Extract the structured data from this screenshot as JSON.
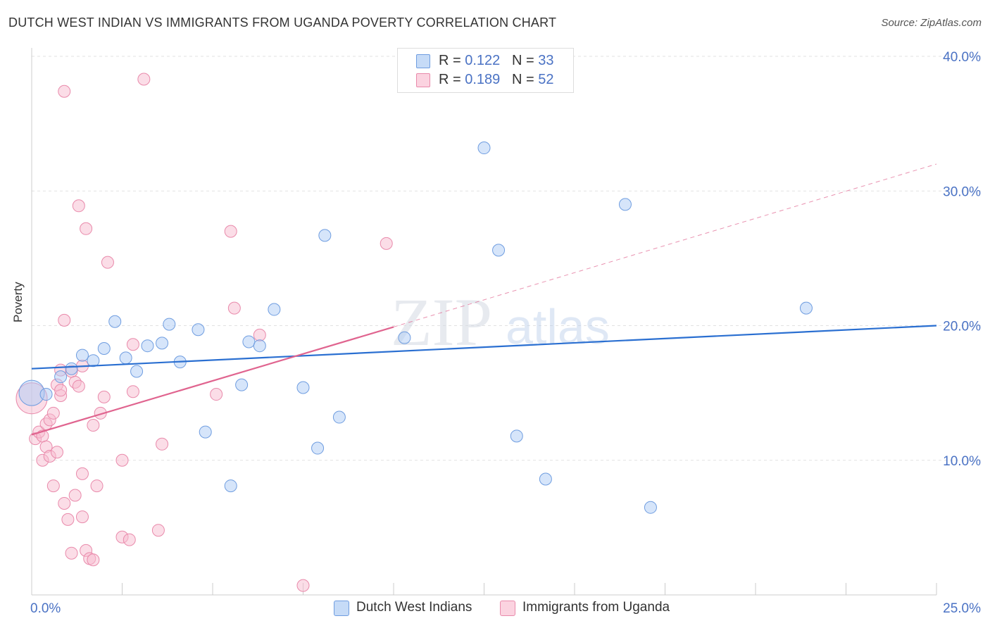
{
  "title": "DUTCH WEST INDIAN VS IMMIGRANTS FROM UGANDA POVERTY CORRELATION CHART",
  "source": "Source: ZipAtlas.com",
  "watermark": {
    "zip": "ZIP",
    "atlas": "atlas"
  },
  "legend_top": [
    {
      "r_label": "R = ",
      "r_value": "0.122",
      "n_label": "N = ",
      "n_value": "33",
      "color": "#aecbf5"
    },
    {
      "r_label": "R = ",
      "r_value": "0.189",
      "n_label": "N = ",
      "n_value": "52",
      "color": "#f7bcd0"
    }
  ],
  "legend_bottom": [
    {
      "label": "Dutch West Indians",
      "color": "#aecbf5"
    },
    {
      "label": "Immigrants from Uganda",
      "color": "#f7bcd0"
    }
  ],
  "chart_data": {
    "type": "scatter",
    "title": "DUTCH WEST INDIAN VS IMMIGRANTS FROM UGANDA POVERTY CORRELATION CHART",
    "xlabel": "",
    "ylabel": "Poverty",
    "xlim": [
      0,
      25
    ],
    "ylim": [
      0,
      40
    ],
    "x_tick_labels": [
      "0.0%",
      "25.0%"
    ],
    "y_ticks": [
      10,
      20,
      30,
      40
    ],
    "y_tick_labels": [
      "10.0%",
      "20.0%",
      "30.0%",
      "40.0%"
    ],
    "grid": true,
    "colors": {
      "blue_fill": "#aecbf5",
      "blue_stroke": "#6f9de0",
      "blue_line": "#2a6fd1",
      "pink_fill": "#f7bcd0",
      "pink_stroke": "#e98aab",
      "pink_line": "#e0648f",
      "tick_text": "#4a72c4"
    },
    "series": [
      {
        "name": "Dutch West Indians",
        "points": [
          [
            0.0,
            15.0
          ],
          [
            0.4,
            14.9
          ],
          [
            0.8,
            16.2
          ],
          [
            1.1,
            16.8
          ],
          [
            1.4,
            17.8
          ],
          [
            1.7,
            17.4
          ],
          [
            2.0,
            18.3
          ],
          [
            2.3,
            20.3
          ],
          [
            2.6,
            17.6
          ],
          [
            2.9,
            16.6
          ],
          [
            3.2,
            18.5
          ],
          [
            3.6,
            18.7
          ],
          [
            3.8,
            20.1
          ],
          [
            4.1,
            17.3
          ],
          [
            4.6,
            19.7
          ],
          [
            4.8,
            12.1
          ],
          [
            5.5,
            8.1
          ],
          [
            5.8,
            15.6
          ],
          [
            6.0,
            18.8
          ],
          [
            6.3,
            18.5
          ],
          [
            6.7,
            21.2
          ],
          [
            7.5,
            15.4
          ],
          [
            7.9,
            10.9
          ],
          [
            8.1,
            26.7
          ],
          [
            8.5,
            13.2
          ],
          [
            10.3,
            19.1
          ],
          [
            12.5,
            33.2
          ],
          [
            12.9,
            25.6
          ],
          [
            13.4,
            11.8
          ],
          [
            14.2,
            8.6
          ],
          [
            16.4,
            29.0
          ],
          [
            17.1,
            6.5
          ],
          [
            21.4,
            21.3
          ]
        ],
        "trend": [
          [
            0,
            16.8
          ],
          [
            25,
            20.0
          ]
        ]
      },
      {
        "name": "Immigrants from Uganda",
        "points": [
          [
            0.0,
            14.6
          ],
          [
            0.1,
            11.6
          ],
          [
            0.2,
            12.1
          ],
          [
            0.3,
            11.8
          ],
          [
            0.3,
            10.0
          ],
          [
            0.4,
            11.0
          ],
          [
            0.4,
            12.7
          ],
          [
            0.5,
            13.0
          ],
          [
            0.5,
            10.3
          ],
          [
            0.6,
            8.1
          ],
          [
            0.6,
            13.5
          ],
          [
            0.7,
            15.6
          ],
          [
            0.7,
            10.6
          ],
          [
            0.8,
            14.8
          ],
          [
            0.8,
            15.2
          ],
          [
            0.8,
            16.7
          ],
          [
            0.9,
            6.8
          ],
          [
            0.9,
            37.4
          ],
          [
            0.9,
            20.4
          ],
          [
            1.0,
            5.6
          ],
          [
            1.1,
            3.1
          ],
          [
            1.1,
            16.6
          ],
          [
            1.2,
            15.8
          ],
          [
            1.2,
            7.4
          ],
          [
            1.3,
            15.5
          ],
          [
            1.3,
            28.9
          ],
          [
            1.4,
            9.0
          ],
          [
            1.4,
            5.8
          ],
          [
            1.5,
            3.3
          ],
          [
            1.5,
            27.2
          ],
          [
            1.6,
            2.7
          ],
          [
            1.7,
            2.6
          ],
          [
            1.7,
            12.6
          ],
          [
            1.8,
            8.1
          ],
          [
            1.9,
            13.5
          ],
          [
            2.1,
            24.7
          ],
          [
            2.5,
            10.0
          ],
          [
            2.5,
            4.3
          ],
          [
            2.7,
            4.1
          ],
          [
            2.8,
            18.6
          ],
          [
            2.8,
            15.1
          ],
          [
            3.1,
            38.3
          ],
          [
            3.5,
            4.8
          ],
          [
            3.6,
            11.2
          ],
          [
            5.1,
            14.9
          ],
          [
            5.5,
            27.0
          ],
          [
            5.6,
            21.3
          ],
          [
            6.3,
            19.3
          ],
          [
            7.5,
            0.7
          ],
          [
            9.8,
            26.1
          ],
          [
            2.0,
            14.7
          ],
          [
            1.4,
            17.0
          ]
        ],
        "trend_solid": [
          [
            0,
            11.9
          ],
          [
            10.0,
            19.9
          ]
        ],
        "trend_dashed": [
          [
            10.0,
            19.9
          ],
          [
            25,
            32.0
          ]
        ]
      }
    ]
  }
}
